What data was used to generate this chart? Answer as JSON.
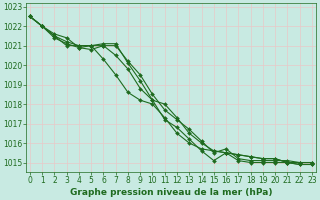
{
  "x": [
    0,
    1,
    2,
    3,
    4,
    5,
    6,
    7,
    8,
    9,
    10,
    11,
    12,
    13,
    14,
    15,
    16,
    17,
    18,
    19,
    20,
    21,
    22,
    23
  ],
  "series": [
    [
      1022.5,
      1022.0,
      1021.6,
      1021.4,
      1020.9,
      1020.8,
      1021.0,
      1021.0,
      1020.2,
      1019.5,
      1018.5,
      1017.7,
      1017.2,
      1016.7,
      1016.1,
      1015.5,
      1015.7,
      1015.2,
      1015.1,
      1015.1,
      1015.1,
      1015.1,
      1015.0,
      1015.0
    ],
    [
      1022.5,
      1022.0,
      1021.4,
      1021.1,
      1020.9,
      1021.0,
      1021.1,
      1021.1,
      1020.1,
      1019.2,
      1018.2,
      1017.2,
      1016.8,
      1016.2,
      1015.6,
      1015.1,
      1015.5,
      1015.1,
      1015.0,
      1015.0,
      1015.0,
      1015.0,
      1015.0,
      1015.0
    ],
    [
      1022.5,
      1022.0,
      1021.5,
      1021.2,
      1021.0,
      1021.0,
      1020.3,
      1019.5,
      1018.6,
      1018.2,
      1018.0,
      1017.3,
      1016.5,
      1016.0,
      1015.7,
      1015.6,
      1015.5,
      1015.4,
      1015.3,
      1015.2,
      1015.2,
      1015.0,
      1014.9,
      1014.9
    ],
    [
      1022.5,
      1022.0,
      1021.5,
      1021.0,
      1021.0,
      1021.0,
      1021.0,
      1020.5,
      1019.8,
      1018.8,
      1018.2,
      1018.0,
      1017.3,
      1016.5,
      1016.0,
      1015.6,
      1015.5,
      1015.4,
      1015.3,
      1015.2,
      1015.2,
      1015.0,
      1014.9,
      1014.9
    ]
  ],
  "line_color": "#1f6b1f",
  "marker": "D",
  "marker_size": 2.0,
  "line_width": 0.8,
  "ylim": [
    1014.5,
    1023.2
  ],
  "xlim": [
    -0.3,
    23.3
  ],
  "yticks": [
    1015,
    1016,
    1017,
    1018,
    1019,
    1020,
    1021,
    1022,
    1023
  ],
  "xticks": [
    0,
    1,
    2,
    3,
    4,
    5,
    6,
    7,
    8,
    9,
    10,
    11,
    12,
    13,
    14,
    15,
    16,
    17,
    18,
    19,
    20,
    21,
    22,
    23
  ],
  "xlabel": "Graphe pression niveau de la mer (hPa)",
  "bg_color": "#c8eae2",
  "grid_color": "#b0d8d0",
  "tick_color": "#1f6b1f",
  "label_color": "#1f6b1f",
  "tick_fontsize": 5.5,
  "label_fontsize": 6.5
}
